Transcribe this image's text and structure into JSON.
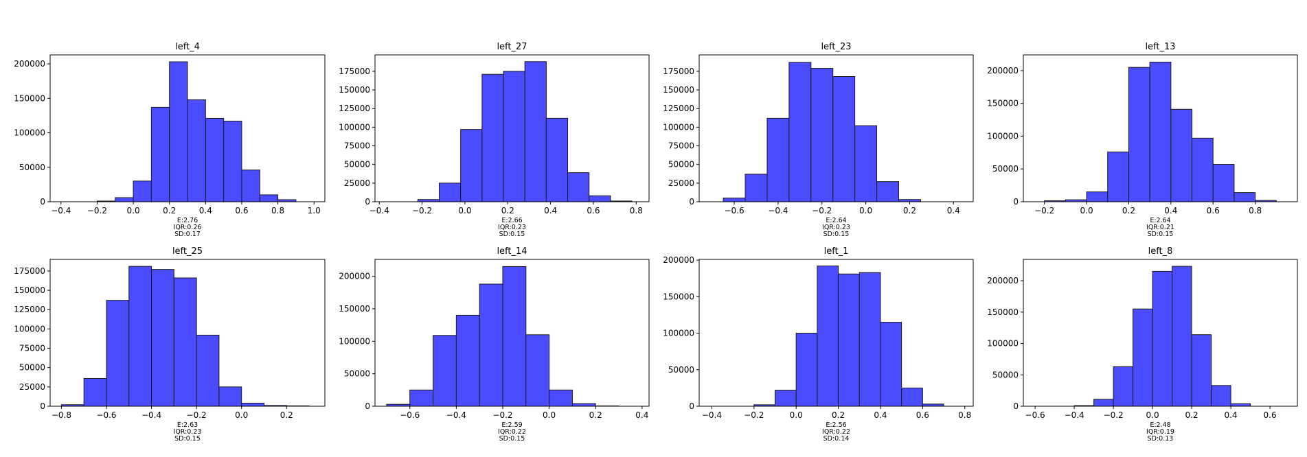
{
  "chart_data": [
    {
      "type": "bar",
      "title": "left_4",
      "bins": [
        -0.2,
        -0.1,
        0.0,
        0.1,
        0.2,
        0.3,
        0.4,
        0.5,
        0.6,
        0.7,
        0.8,
        0.9
      ],
      "counts": [
        1000,
        6000,
        30000,
        137000,
        203000,
        148000,
        121000,
        117000,
        46000,
        10000,
        3000
      ],
      "xlim": [
        -0.46,
        1.06
      ],
      "ylim": [
        0,
        213000
      ],
      "xticks": [
        -0.4,
        -0.2,
        0.0,
        0.2,
        0.4,
        0.6,
        0.8,
        1.0
      ],
      "xtick_labels": [
        "−0.4",
        "−0.2",
        "0.0",
        "0.2",
        "0.4",
        "0.6",
        "0.8",
        "1.0"
      ],
      "yticks": [
        0,
        50000,
        100000,
        150000,
        200000
      ],
      "ytick_labels": [
        "0",
        "50000",
        "100000",
        "150000",
        "200000"
      ],
      "stats": [
        "E:2.76",
        "IQR:0.26",
        "SD:0.17"
      ]
    },
    {
      "type": "bar",
      "title": "left_27",
      "bins": [
        -0.22,
        -0.12,
        -0.02,
        0.08,
        0.18,
        0.28,
        0.38,
        0.48,
        0.58,
        0.68,
        0.78
      ],
      "counts": [
        3000,
        25000,
        97000,
        171000,
        175000,
        188000,
        112000,
        39000,
        8000,
        1000
      ],
      "xlim": [
        -0.42,
        0.86
      ],
      "ylim": [
        0,
        197000
      ],
      "xticks": [
        -0.4,
        -0.2,
        0.0,
        0.2,
        0.4,
        0.6,
        0.8
      ],
      "xtick_labels": [
        "−0.4",
        "−0.2",
        "0.0",
        "0.2",
        "0.4",
        "0.6",
        "0.8"
      ],
      "yticks": [
        0,
        25000,
        50000,
        75000,
        100000,
        125000,
        150000,
        175000
      ],
      "ytick_labels": [
        "0",
        "25000",
        "50000",
        "75000",
        "100000",
        "125000",
        "150000",
        "175000"
      ],
      "stats": [
        "E:2.66",
        "IQR:0.23",
        "SD:0.15"
      ]
    },
    {
      "type": "bar",
      "title": "left_23",
      "bins": [
        -0.65,
        -0.55,
        -0.45,
        -0.35,
        -0.25,
        -0.15,
        -0.05,
        0.05,
        0.15,
        0.25
      ],
      "counts": [
        5000,
        37000,
        112000,
        187000,
        179000,
        168000,
        102000,
        27000,
        3000
      ],
      "xlim": [
        -0.76,
        0.49
      ],
      "ylim": [
        0,
        197000
      ],
      "xticks": [
        -0.6,
        -0.4,
        -0.2,
        0.0,
        0.2,
        0.4
      ],
      "xtick_labels": [
        "−0.6",
        "−0.4",
        "−0.2",
        "0.0",
        "0.2",
        "0.4"
      ],
      "yticks": [
        0,
        25000,
        50000,
        75000,
        100000,
        125000,
        150000,
        175000
      ],
      "ytick_labels": [
        "0",
        "25000",
        "50000",
        "75000",
        "100000",
        "125000",
        "150000",
        "175000"
      ],
      "stats": [
        "E:2.64",
        "IQR:0.23",
        "SD:0.15"
      ]
    },
    {
      "type": "bar",
      "title": "left_13",
      "bins": [
        -0.2,
        -0.1,
        0.0,
        0.1,
        0.2,
        0.3,
        0.4,
        0.5,
        0.6,
        0.7,
        0.8,
        0.9
      ],
      "counts": [
        1500,
        3000,
        15000,
        76000,
        205000,
        213000,
        141000,
        97000,
        57000,
        14000,
        2000
      ],
      "xlim": [
        -0.3,
        1.0
      ],
      "ylim": [
        0,
        224000
      ],
      "xticks": [
        -0.2,
        0.0,
        0.2,
        0.4,
        0.6,
        0.8
      ],
      "xtick_labels": [
        "−0.2",
        "0.0",
        "0.2",
        "0.4",
        "0.6",
        "0.8"
      ],
      "yticks": [
        0,
        50000,
        100000,
        150000,
        200000
      ],
      "ytick_labels": [
        "0",
        "50000",
        "100000",
        "150000",
        "200000"
      ],
      "stats": [
        "E:2.64",
        "IQR:0.21",
        "SD:0.15"
      ]
    },
    {
      "type": "bar",
      "title": "left_25",
      "bins": [
        -0.8,
        -0.7,
        -0.6,
        -0.5,
        -0.4,
        -0.3,
        -0.2,
        -0.1,
        0.0,
        0.1,
        0.2,
        0.3
      ],
      "counts": [
        2000,
        36000,
        137000,
        181000,
        177000,
        166000,
        92000,
        25000,
        4000,
        1000,
        500
      ],
      "xlim": [
        -0.85,
        0.37
      ],
      "ylim": [
        0,
        190000
      ],
      "xticks": [
        -0.8,
        -0.6,
        -0.4,
        -0.2,
        0.0,
        0.2
      ],
      "xtick_labels": [
        "−0.8",
        "−0.6",
        "−0.4",
        "−0.2",
        "0.0",
        "0.2"
      ],
      "yticks": [
        0,
        25000,
        50000,
        75000,
        100000,
        125000,
        150000,
        175000
      ],
      "ytick_labels": [
        "0",
        "25000",
        "50000",
        "75000",
        "100000",
        "125000",
        "150000",
        "175000"
      ],
      "stats": [
        "E:2.63",
        "IQR:0.23",
        "SD:0.15"
      ]
    },
    {
      "type": "bar",
      "title": "left_14",
      "bins": [
        -0.7,
        -0.6,
        -0.5,
        -0.4,
        -0.3,
        -0.2,
        -0.1,
        0.0,
        0.1,
        0.2,
        0.3
      ],
      "counts": [
        3000,
        25000,
        109000,
        140000,
        188000,
        215000,
        110000,
        25000,
        4000,
        500
      ],
      "xlim": [
        -0.75,
        0.43
      ],
      "ylim": [
        0,
        226000
      ],
      "xticks": [
        -0.6,
        -0.4,
        -0.2,
        0.0,
        0.2,
        0.4
      ],
      "xtick_labels": [
        "−0.6",
        "−0.4",
        "−0.2",
        "0.0",
        "0.2",
        "0.4"
      ],
      "yticks": [
        0,
        50000,
        100000,
        150000,
        200000
      ],
      "ytick_labels": [
        "0",
        "50000",
        "100000",
        "150000",
        "200000"
      ],
      "stats": [
        "E:2.59",
        "IQR:0.22",
        "SD:0.15"
      ]
    },
    {
      "type": "bar",
      "title": "left_1",
      "bins": [
        -0.2,
        -0.1,
        0.0,
        0.1,
        0.2,
        0.3,
        0.4,
        0.5,
        0.6,
        0.7
      ],
      "counts": [
        2000,
        22000,
        100000,
        192000,
        181000,
        183000,
        115000,
        25000,
        3000
      ],
      "xlim": [
        -0.46,
        0.84
      ],
      "ylim": [
        0,
        201000
      ],
      "xticks": [
        -0.4,
        -0.2,
        0.0,
        0.2,
        0.4,
        0.6,
        0.8
      ],
      "xtick_labels": [
        "−0.4",
        "−0.2",
        "0.0",
        "0.2",
        "0.4",
        "0.6",
        "0.8"
      ],
      "yticks": [
        0,
        50000,
        100000,
        150000,
        200000
      ],
      "ytick_labels": [
        "0",
        "50000",
        "100000",
        "150000",
        "200000"
      ],
      "stats": [
        "E:2.56",
        "IQR:0.22",
        "SD:0.14"
      ]
    },
    {
      "type": "bar",
      "title": "left_8",
      "bins": [
        -0.4,
        -0.3,
        -0.2,
        -0.1,
        0.0,
        0.1,
        0.2,
        0.3,
        0.4,
        0.5
      ],
      "counts": [
        1000,
        11000,
        63000,
        155000,
        215000,
        223000,
        114000,
        33000,
        4000
      ],
      "xlim": [
        -0.66,
        0.74
      ],
      "ylim": [
        0,
        234000
      ],
      "xticks": [
        -0.6,
        -0.4,
        -0.2,
        0.0,
        0.2,
        0.4,
        0.6
      ],
      "xtick_labels": [
        "−0.6",
        "−0.4",
        "−0.2",
        "0.0",
        "0.2",
        "0.4",
        "0.6"
      ],
      "yticks": [
        0,
        50000,
        100000,
        150000,
        200000
      ],
      "ytick_labels": [
        "0",
        "50000",
        "100000",
        "150000",
        "200000"
      ],
      "stats": [
        "E:2.48",
        "IQR:0.19",
        "SD:0.13"
      ]
    }
  ]
}
